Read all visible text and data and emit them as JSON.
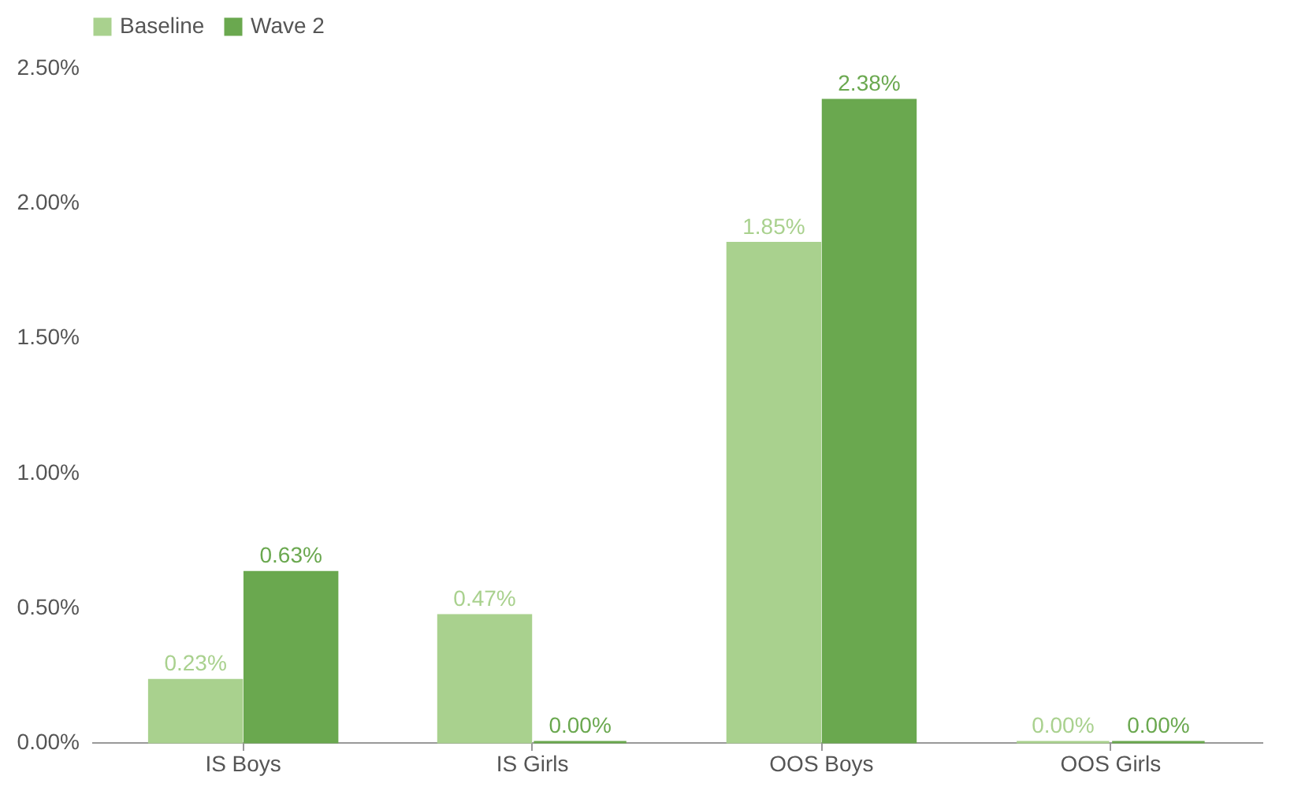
{
  "chart_data": {
    "type": "bar",
    "categories": [
      "IS Boys",
      "IS Girls",
      "OOS Boys",
      "OOS Girls"
    ],
    "series": [
      {
        "name": "Baseline",
        "color": "#a9d18e",
        "values": [
          0.23,
          0.47,
          1.85,
          0
        ],
        "value_labels": [
          "0.23%",
          "0.47%",
          "1.85%",
          "0.00%"
        ]
      },
      {
        "name": "Wave 2",
        "color": "#6aa84f",
        "values": [
          0.63,
          0,
          2.38,
          0
        ],
        "value_labels": [
          "0.63%",
          "0.00%",
          "2.38%",
          "0.00%"
        ]
      }
    ],
    "ylim": [
      0,
      2.5
    ],
    "yticks": [
      {
        "value": 0,
        "label": "0.00%"
      },
      {
        "value": 0.5,
        "label": "0.50%"
      },
      {
        "value": 1,
        "label": "1.00%"
      },
      {
        "value": 1.5,
        "label": "1.50%"
      },
      {
        "value": 2,
        "label": "2.00%"
      },
      {
        "value": 2.5,
        "label": "2.50%"
      }
    ],
    "grid": false,
    "legend": "top"
  }
}
